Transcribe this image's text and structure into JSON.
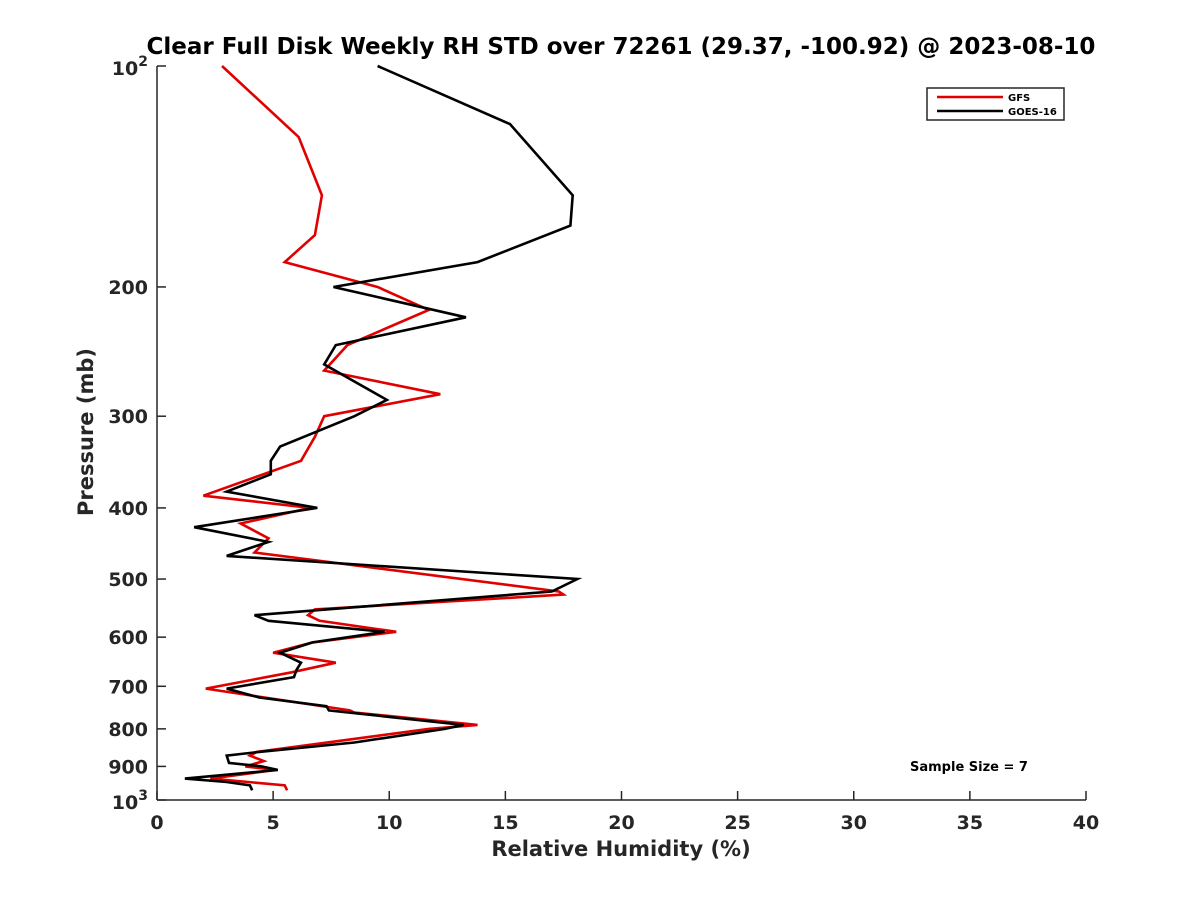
{
  "chart_data": {
    "type": "line",
    "title": "Clear Full Disk Weekly RH STD over 72261 (29.37, -100.92) @ 2023-08-10",
    "xlabel": "Relative Humidity (%)",
    "ylabel": "Pressure (mb)",
    "xlim": [
      0,
      40
    ],
    "ylim": [
      1000,
      100
    ],
    "y_scale": "log",
    "y_reversed": true,
    "x_ticks": [
      "0",
      "5",
      "10",
      "15",
      "20",
      "25",
      "30",
      "35",
      "40"
    ],
    "y_ticks": [
      {
        "value": 100,
        "base": "10",
        "exp": "2"
      },
      {
        "value": 200,
        "label": "200"
      },
      {
        "value": 300,
        "label": "300"
      },
      {
        "value": 400,
        "label": "400"
      },
      {
        "value": 500,
        "label": "500"
      },
      {
        "value": 600,
        "label": "600"
      },
      {
        "value": 700,
        "label": "700"
      },
      {
        "value": 800,
        "label": "800"
      },
      {
        "value": 900,
        "label": "900"
      },
      {
        "value": 1000,
        "base": "10",
        "exp": "3"
      }
    ],
    "grid": false,
    "legend_position": "top-right",
    "annotation": "Sample Size = 7",
    "series": [
      {
        "name": "GFS",
        "color": "#e00000",
        "points": [
          [
            2.8,
            100
          ],
          [
            6.1,
            125
          ],
          [
            7.1,
            150
          ],
          [
            6.8,
            170
          ],
          [
            5.5,
            185
          ],
          [
            9.5,
            200
          ],
          [
            11.7,
            215
          ],
          [
            8.2,
            240
          ],
          [
            7.2,
            260
          ],
          [
            12.2,
            280
          ],
          [
            7.2,
            300
          ],
          [
            6.8,
            320
          ],
          [
            6.2,
            345
          ],
          [
            2.0,
            385
          ],
          [
            6.6,
            400
          ],
          [
            3.6,
            420
          ],
          [
            4.8,
            440
          ],
          [
            4.2,
            460
          ],
          [
            17.3,
            520
          ],
          [
            17.5,
            525
          ],
          [
            6.8,
            550
          ],
          [
            6.5,
            560
          ],
          [
            7.0,
            570
          ],
          [
            10.3,
            590
          ],
          [
            6.7,
            610
          ],
          [
            5.0,
            630
          ],
          [
            7.7,
            650
          ],
          [
            5.8,
            670
          ],
          [
            2.1,
            705
          ],
          [
            8.3,
            755
          ],
          [
            8.5,
            760
          ],
          [
            13.8,
            790
          ],
          [
            11.7,
            800
          ],
          [
            4.3,
            860
          ],
          [
            4.0,
            870
          ],
          [
            4.6,
            885
          ],
          [
            3.8,
            900
          ],
          [
            5.1,
            910
          ],
          [
            2.3,
            935
          ],
          [
            5.5,
            955
          ],
          [
            5.6,
            970
          ]
        ]
      },
      {
        "name": "GOES-16",
        "color": "#000000",
        "points": [
          [
            9.5,
            100
          ],
          [
            15.2,
            120
          ],
          [
            17.9,
            150
          ],
          [
            17.8,
            165
          ],
          [
            13.8,
            185
          ],
          [
            7.6,
            200
          ],
          [
            13.3,
            220
          ],
          [
            7.7,
            240
          ],
          [
            7.2,
            255
          ],
          [
            9.9,
            285
          ],
          [
            8.5,
            300
          ],
          [
            5.3,
            330
          ],
          [
            4.9,
            345
          ],
          [
            4.9,
            360
          ],
          [
            3.0,
            380
          ],
          [
            6.9,
            400
          ],
          [
            1.6,
            425
          ],
          [
            4.8,
            445
          ],
          [
            3.0,
            465
          ],
          [
            18.1,
            500
          ],
          [
            17.0,
            520
          ],
          [
            4.2,
            560
          ],
          [
            4.8,
            570
          ],
          [
            9.8,
            590
          ],
          [
            6.7,
            610
          ],
          [
            5.3,
            630
          ],
          [
            6.2,
            650
          ],
          [
            6.0,
            665
          ],
          [
            5.9,
            680
          ],
          [
            3.0,
            705
          ],
          [
            4.4,
            725
          ],
          [
            7.3,
            745
          ],
          [
            7.4,
            755
          ],
          [
            13.2,
            790
          ],
          [
            12.4,
            800
          ],
          [
            8.5,
            835
          ],
          [
            4.4,
            860
          ],
          [
            3.0,
            870
          ],
          [
            3.1,
            890
          ],
          [
            4.5,
            900
          ],
          [
            5.2,
            910
          ],
          [
            1.2,
            935
          ],
          [
            3.0,
            945
          ],
          [
            4.0,
            955
          ],
          [
            4.1,
            970
          ]
        ]
      }
    ]
  }
}
